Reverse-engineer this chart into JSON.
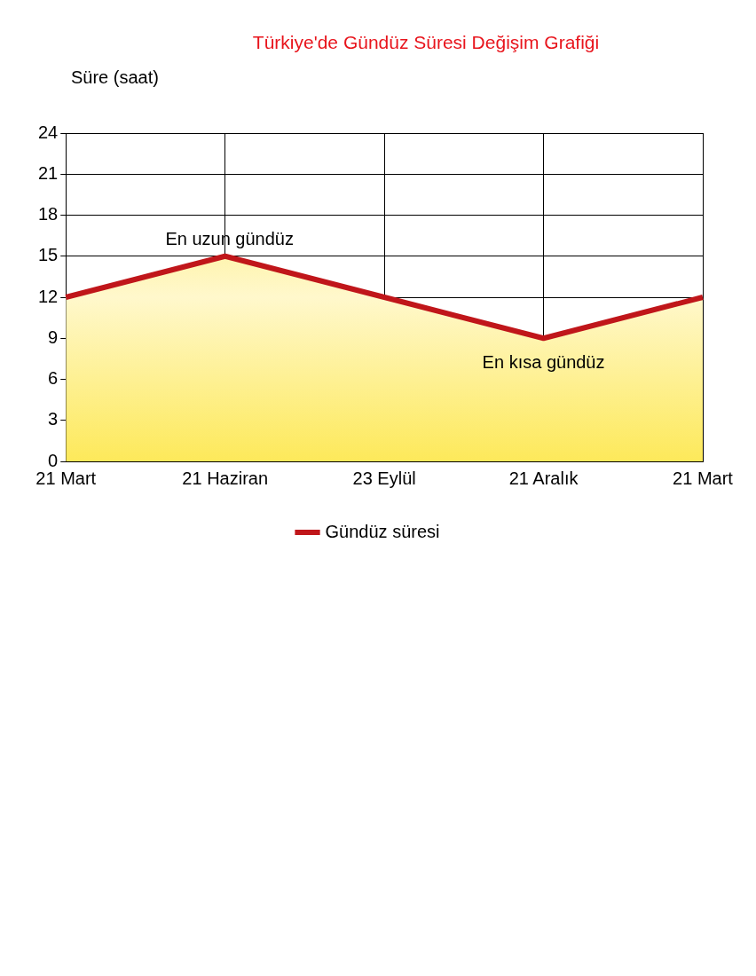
{
  "chart_data": {
    "type": "area",
    "title": "Türkiye'de Gündüz Süresi Değişim Grafiği",
    "ylabel": "Süre (saat)",
    "categories": [
      "21 Mart",
      "21 Haziran",
      "23 Eylül",
      "21 Aralık",
      "21 Mart"
    ],
    "series": [
      {
        "name": "Gündüz süresi",
        "color": "#c0161a",
        "values": [
          12,
          15,
          12,
          9,
          12
        ]
      }
    ],
    "ylim": [
      0,
      24
    ],
    "yticks": [
      0,
      3,
      6,
      9,
      12,
      15,
      18,
      21,
      24
    ],
    "grid": true,
    "legend": "bottom",
    "marker": "none",
    "annotations": [
      {
        "text": "En uzun gündüz",
        "x": "21 Haziran",
        "y": 15
      },
      {
        "text": "En kısa gündüz",
        "x": "21 Aralık",
        "y": 9
      }
    ]
  }
}
